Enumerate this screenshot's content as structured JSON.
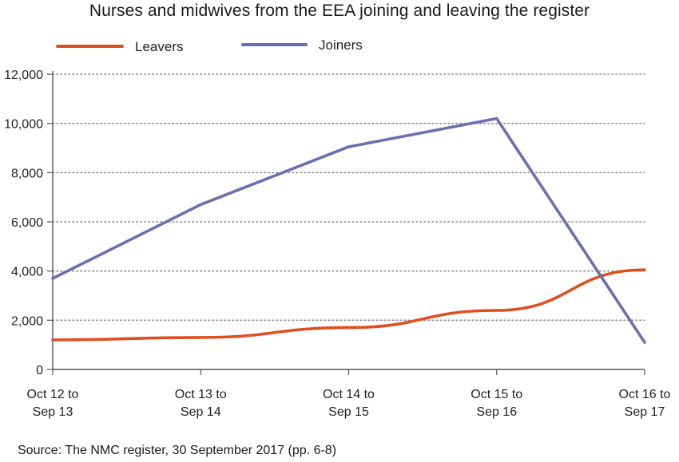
{
  "chart_data": {
    "type": "line",
    "title": "Nurses and midwives from the EEA joining and leaving the register",
    "xlabel": "",
    "ylabel": "",
    "categories": [
      [
        "Oct 12 to",
        "Sep 13"
      ],
      [
        "Oct 13 to",
        "Sep 14"
      ],
      [
        "Oct 14 to",
        "Sep 15"
      ],
      [
        "Oct 15 to",
        "Sep 16"
      ],
      [
        "Oct 16 to",
        "Sep 17"
      ]
    ],
    "series": [
      {
        "name": "Leavers",
        "color": "#e04e1f",
        "values": [
          1200,
          1300,
          1700,
          2400,
          4050
        ]
      },
      {
        "name": "Joiners",
        "color": "#6a6fb0",
        "values": [
          3700,
          6700,
          9050,
          10200,
          1100
        ]
      }
    ],
    "ylim": [
      0,
      12000
    ],
    "yticks": [
      0,
      2000,
      4000,
      6000,
      8000,
      10000,
      12000
    ],
    "ytick_labels": [
      "0",
      "2,000",
      "4,000",
      "6,000",
      "8,000",
      "10,000",
      "12,000"
    ],
    "grid": true,
    "legend_position": "top-left",
    "source": "Source: The NMC register, 30 September 2017 (pp. 6-8)"
  }
}
